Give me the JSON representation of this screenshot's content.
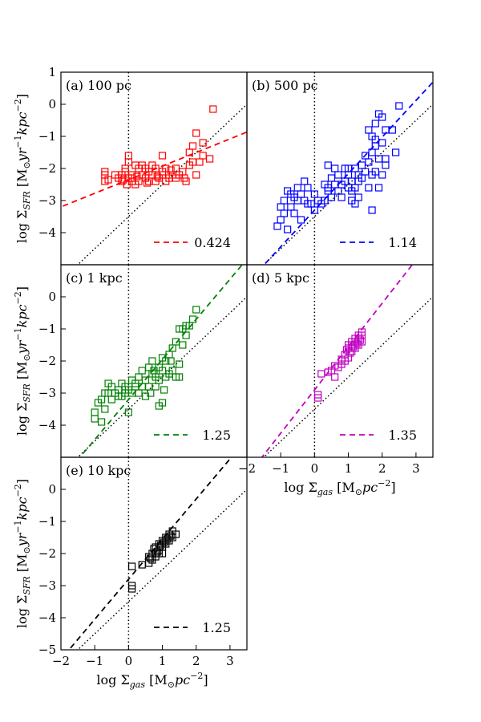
{
  "figure": {
    "xlabel": "log Σgas [M⊙pc⁻²]",
    "ylabel": "log ΣSFR [M⊙yr⁻¹kpc⁻²]",
    "xlabel_parts": {
      "pre": "log Σ",
      "sub": "gas",
      "post": " [M",
      "odot": "⊙",
      "unit": "pc",
      "exp": "−2",
      "close": "]"
    },
    "ylabel_parts": {
      "pre": "log Σ",
      "sub": "SFR",
      "post": " [M",
      "odot": "⊙",
      "yr": "yr",
      "exp1": "−1",
      "kpc": "kpc",
      "exp2": "−2",
      "close": "]"
    },
    "xlim": [
      -2,
      3.5
    ],
    "ylim": [
      -5,
      1
    ]
  },
  "chart_data": [
    {
      "type": "scatter",
      "panel": "(a) 100 pc",
      "color": "#ff0000",
      "slope_label": "0.424",
      "fit": {
        "slope": 0.424,
        "intercept": -2.35
      },
      "xlim": [
        -2,
        3.5
      ],
      "ylim": [
        -5,
        1
      ],
      "yticks": [
        "1",
        "0",
        "−1",
        "−2",
        "−3",
        "−4"
      ],
      "xticks": [],
      "points": [
        [
          -0.7,
          -2.1
        ],
        [
          -0.7,
          -2.2
        ],
        [
          -0.7,
          -2.4
        ],
        [
          -0.3,
          -2.3
        ],
        [
          -0.2,
          -2.2
        ],
        [
          -0.2,
          -2.4
        ],
        [
          -0.1,
          -2.0
        ],
        [
          -0.1,
          -2.1
        ],
        [
          -0.05,
          -2.5
        ],
        [
          0.0,
          -2.3
        ],
        [
          0.0,
          -1.6
        ],
        [
          0.0,
          -1.8
        ],
        [
          0.1,
          -2.2
        ],
        [
          0.1,
          -2.3
        ],
        [
          0.1,
          -2.4
        ],
        [
          0.2,
          -1.9
        ],
        [
          0.2,
          -2.5
        ],
        [
          0.3,
          -2.0
        ],
        [
          0.3,
          -2.4
        ],
        [
          0.4,
          -1.9
        ],
        [
          0.4,
          -2.2
        ],
        [
          0.5,
          -2.0
        ],
        [
          0.5,
          -2.3
        ],
        [
          0.6,
          -2.1
        ],
        [
          0.6,
          -2.4
        ],
        [
          0.7,
          -1.9
        ],
        [
          0.7,
          -2.2
        ],
        [
          0.8,
          -2.0
        ],
        [
          0.8,
          -2.4
        ],
        [
          0.9,
          -2.3
        ],
        [
          1.0,
          -2.2
        ],
        [
          1.0,
          -1.6
        ],
        [
          1.0,
          -2.1
        ],
        [
          1.1,
          -2.4
        ],
        [
          1.1,
          -2.0
        ],
        [
          1.2,
          -2.3
        ],
        [
          1.3,
          -2.2
        ],
        [
          1.4,
          -2.0
        ],
        [
          1.4,
          -2.3
        ],
        [
          1.5,
          -2.2
        ],
        [
          1.6,
          -2.1
        ],
        [
          1.7,
          -2.4
        ],
        [
          1.8,
          -1.9
        ],
        [
          1.8,
          -1.5
        ],
        [
          1.9,
          -1.3
        ],
        [
          1.9,
          -1.8
        ],
        [
          2.0,
          -0.9
        ],
        [
          2.0,
          -2.2
        ],
        [
          2.1,
          -1.8
        ],
        [
          2.2,
          -1.2
        ],
        [
          2.2,
          -1.6
        ],
        [
          2.4,
          -1.7
        ],
        [
          2.5,
          -0.15
        ],
        [
          -0.6,
          -2.35
        ],
        [
          -0.4,
          -2.2
        ],
        [
          -0.15,
          -2.35
        ],
        [
          0.25,
          -2.25
        ],
        [
          0.55,
          -2.45
        ],
        [
          0.85,
          -2.25
        ],
        [
          1.25,
          -2.05
        ],
        [
          1.65,
          -2.3
        ]
      ]
    },
    {
      "type": "scatter",
      "panel": "(b) 500 pc",
      "color": "#0000ff",
      "slope_label": "1.14",
      "fit": {
        "slope": 1.14,
        "intercept": -3.3
      },
      "xlim": [
        -2,
        3.5
      ],
      "ylim": [
        -5,
        1
      ],
      "yticks": [],
      "xticks": [],
      "points": [
        [
          -1.1,
          -3.8
        ],
        [
          -1.0,
          -3.2
        ],
        [
          -1.0,
          -3.6
        ],
        [
          -0.9,
          -3.4
        ],
        [
          -0.9,
          -3.0
        ],
        [
          -0.8,
          -2.7
        ],
        [
          -0.8,
          -3.9
        ],
        [
          -0.7,
          -3.2
        ],
        [
          -0.7,
          -2.8
        ],
        [
          -0.6,
          -3.4
        ],
        [
          -0.6,
          -2.9
        ],
        [
          -0.5,
          -3.0
        ],
        [
          -0.5,
          -2.6
        ],
        [
          -0.4,
          -3.6
        ],
        [
          -0.4,
          -2.8
        ],
        [
          -0.3,
          -3.0
        ],
        [
          -0.3,
          -2.4
        ],
        [
          -0.2,
          -2.6
        ],
        [
          -0.2,
          -3.1
        ],
        [
          -0.1,
          -3.1
        ],
        [
          0.0,
          -2.8
        ],
        [
          0.0,
          -3.3
        ],
        [
          0.1,
          -3.0
        ],
        [
          0.2,
          -3.1
        ],
        [
          0.3,
          -3.0
        ],
        [
          0.3,
          -2.5
        ],
        [
          0.4,
          -2.7
        ],
        [
          0.4,
          -1.9
        ],
        [
          0.5,
          -2.3
        ],
        [
          0.5,
          -2.9
        ],
        [
          0.6,
          -2.5
        ],
        [
          0.6,
          -2.0
        ],
        [
          0.7,
          -2.7
        ],
        [
          0.7,
          -2.2
        ],
        [
          0.8,
          -2.5
        ],
        [
          0.8,
          -2.9
        ],
        [
          0.9,
          -2.4
        ],
        [
          0.9,
          -2.0
        ],
        [
          1.0,
          -2.6
        ],
        [
          1.0,
          -2.2
        ],
        [
          1.1,
          -2.7
        ],
        [
          1.1,
          -2.4
        ],
        [
          1.2,
          -2.0
        ],
        [
          1.2,
          -2.6
        ],
        [
          1.3,
          -2.4
        ],
        [
          1.3,
          -2.9
        ],
        [
          1.4,
          -2.3
        ],
        [
          1.4,
          -1.9
        ],
        [
          1.5,
          -1.6
        ],
        [
          1.5,
          -2.1
        ],
        [
          1.6,
          -1.8
        ],
        [
          1.6,
          -2.6
        ],
        [
          1.7,
          -1.5
        ],
        [
          1.7,
          -2.2
        ],
        [
          1.8,
          -2.1
        ],
        [
          1.8,
          -1.1
        ],
        [
          1.9,
          -1.7
        ],
        [
          1.9,
          -2.6
        ],
        [
          2.0,
          -1.2
        ],
        [
          2.0,
          -2.2
        ],
        [
          2.1,
          -1.9
        ],
        [
          1.7,
          -3.3
        ],
        [
          1.7,
          -1.0
        ],
        [
          1.6,
          -0.8
        ],
        [
          1.8,
          -0.6
        ],
        [
          1.8,
          -1.3
        ],
        [
          1.9,
          -0.3
        ],
        [
          2.0,
          -0.4
        ],
        [
          2.1,
          -0.8
        ],
        [
          2.1,
          -1.7
        ],
        [
          2.3,
          -0.8
        ],
        [
          2.5,
          -0.05
        ],
        [
          2.4,
          -1.5
        ],
        [
          1.1,
          -3.0
        ],
        [
          1.2,
          -3.1
        ],
        [
          1.3,
          -2.2
        ],
        [
          1.0,
          -2.0
        ],
        [
          0.4,
          -2.6
        ]
      ]
    },
    {
      "type": "scatter",
      "panel": "(c) 1 kpc",
      "color": "#008000",
      "slope_label": "1.25",
      "fit": {
        "slope": 1.25,
        "intercept": -3.2
      },
      "xlim": [
        -2,
        3.5
      ],
      "ylim": [
        -5,
        1
      ],
      "yticks": [
        "0",
        "−1",
        "−2",
        "−3",
        "−4"
      ],
      "xticks": [],
      "points": [
        [
          -1.0,
          -3.6
        ],
        [
          -1.0,
          -3.8
        ],
        [
          -0.9,
          -3.3
        ],
        [
          -0.8,
          -3.9
        ],
        [
          -0.8,
          -3.2
        ],
        [
          -0.7,
          -3.0
        ],
        [
          -0.7,
          -3.5
        ],
        [
          -0.6,
          -3.0
        ],
        [
          -0.6,
          -2.7
        ],
        [
          -0.5,
          -3.2
        ],
        [
          -0.5,
          -2.8
        ],
        [
          -0.4,
          -3.0
        ],
        [
          -0.3,
          -2.9
        ],
        [
          -0.3,
          -3.1
        ],
        [
          -0.2,
          -2.7
        ],
        [
          -0.2,
          -3.1
        ],
        [
          -0.1,
          -2.8
        ],
        [
          -0.1,
          -3.0
        ],
        [
          0.0,
          -3.6
        ],
        [
          0.0,
          -2.9
        ],
        [
          0.1,
          -2.6
        ],
        [
          0.1,
          -3.0
        ],
        [
          0.2,
          -2.7
        ],
        [
          0.2,
          -2.8
        ],
        [
          0.3,
          -2.5
        ],
        [
          0.3,
          -3.0
        ],
        [
          0.4,
          -2.3
        ],
        [
          0.4,
          -2.8
        ],
        [
          0.5,
          -2.6
        ],
        [
          0.5,
          -3.1
        ],
        [
          0.6,
          -2.2
        ],
        [
          0.6,
          -2.8
        ],
        [
          0.7,
          -2.4
        ],
        [
          0.7,
          -2.0
        ],
        [
          0.8,
          -2.5
        ],
        [
          0.8,
          -2.8
        ],
        [
          0.9,
          -2.2
        ],
        [
          0.9,
          -2.6
        ],
        [
          1.0,
          -1.9
        ],
        [
          1.0,
          -2.3
        ],
        [
          1.0,
          -3.3
        ],
        [
          1.1,
          -2.5
        ],
        [
          1.1,
          -2.0
        ],
        [
          1.2,
          -2.4
        ],
        [
          1.2,
          -1.8
        ],
        [
          1.3,
          -2.3
        ],
        [
          1.3,
          -1.6
        ],
        [
          1.4,
          -2.5
        ],
        [
          1.4,
          -1.4
        ],
        [
          1.5,
          -2.1
        ],
        [
          1.5,
          -1.0
        ],
        [
          1.6,
          -1.0
        ],
        [
          1.7,
          -1.2
        ],
        [
          1.8,
          -0.9
        ],
        [
          1.9,
          -0.7
        ],
        [
          2.0,
          -0.4
        ],
        [
          1.7,
          -0.9
        ],
        [
          1.6,
          -1.5
        ],
        [
          1.5,
          -2.5
        ],
        [
          0.9,
          -3.4
        ],
        [
          1.05,
          -2.9
        ],
        [
          1.25,
          -2.0
        ],
        [
          0.65,
          -3.0
        ],
        [
          0.75,
          -2.3
        ]
      ]
    },
    {
      "type": "scatter",
      "panel": "(d) 5 kpc",
      "color": "#bf00bf",
      "slope_label": "1.35",
      "fit": {
        "slope": 1.35,
        "intercept": -2.9
      },
      "xlim": [
        -2,
        3.5
      ],
      "ylim": [
        -5,
        1
      ],
      "yticks": [],
      "xticks": [
        "−2",
        "−1",
        "0",
        "1",
        "2",
        "3"
      ],
      "points": [
        [
          0.1,
          -3.05
        ],
        [
          0.1,
          -3.15
        ],
        [
          0.2,
          -2.4
        ],
        [
          0.4,
          -2.35
        ],
        [
          0.5,
          -2.3
        ],
        [
          0.6,
          -2.15
        ],
        [
          0.6,
          -2.5
        ],
        [
          0.7,
          -2.2
        ],
        [
          0.8,
          -1.95
        ],
        [
          0.8,
          -2.1
        ],
        [
          0.9,
          -1.8
        ],
        [
          0.9,
          -2.0
        ],
        [
          1.0,
          -1.6
        ],
        [
          1.0,
          -1.9
        ],
        [
          1.0,
          -1.5
        ],
        [
          1.1,
          -1.7
        ],
        [
          1.1,
          -1.5
        ],
        [
          1.1,
          -1.4
        ],
        [
          1.2,
          -1.6
        ],
        [
          1.2,
          -1.4
        ],
        [
          1.2,
          -1.3
        ],
        [
          1.3,
          -1.5
        ],
        [
          1.3,
          -1.3
        ],
        [
          1.3,
          -1.2
        ],
        [
          1.4,
          -1.4
        ],
        [
          1.4,
          -1.2
        ],
        [
          1.4,
          -1.1
        ],
        [
          0.95,
          -1.65
        ],
        [
          1.05,
          -1.75
        ],
        [
          1.15,
          -1.55
        ],
        [
          1.25,
          -1.45
        ],
        [
          1.35,
          -1.35
        ]
      ]
    },
    {
      "type": "scatter",
      "panel": "(e) 10 kpc",
      "color": "#000000",
      "slope_label": "1.25",
      "fit": {
        "slope": 1.25,
        "intercept": -2.8
      },
      "xlim": [
        -2,
        3.5
      ],
      "ylim": [
        -5,
        1
      ],
      "yticks": [
        "0",
        "−1",
        "−2",
        "−3",
        "−4",
        "−5"
      ],
      "xticks": [
        "−2",
        "−1",
        "0",
        "1",
        "2",
        "3"
      ],
      "points": [
        [
          0.1,
          -3.0
        ],
        [
          0.1,
          -3.1
        ],
        [
          0.1,
          -2.4
        ],
        [
          0.4,
          -2.35
        ],
        [
          0.6,
          -2.3
        ],
        [
          0.6,
          -2.1
        ],
        [
          0.7,
          -2.0
        ],
        [
          0.7,
          -2.2
        ],
        [
          0.8,
          -1.8
        ],
        [
          0.8,
          -2.0
        ],
        [
          0.8,
          -2.1
        ],
        [
          0.9,
          -1.7
        ],
        [
          0.9,
          -1.9
        ],
        [
          0.9,
          -2.0
        ],
        [
          1.0,
          -1.6
        ],
        [
          1.0,
          -1.8
        ],
        [
          1.0,
          -2.0
        ],
        [
          1.1,
          -1.7
        ],
        [
          1.1,
          -1.5
        ],
        [
          1.2,
          -1.6
        ],
        [
          1.2,
          -1.4
        ],
        [
          1.3,
          -1.5
        ],
        [
          1.3,
          -1.3
        ],
        [
          1.4,
          -1.4
        ],
        [
          0.75,
          -1.85
        ],
        [
          0.85,
          -1.95
        ],
        [
          0.95,
          -1.75
        ],
        [
          1.05,
          -1.65
        ],
        [
          1.15,
          -1.55
        ],
        [
          1.25,
          -1.45
        ],
        [
          0.65,
          -2.15
        ]
      ]
    }
  ]
}
